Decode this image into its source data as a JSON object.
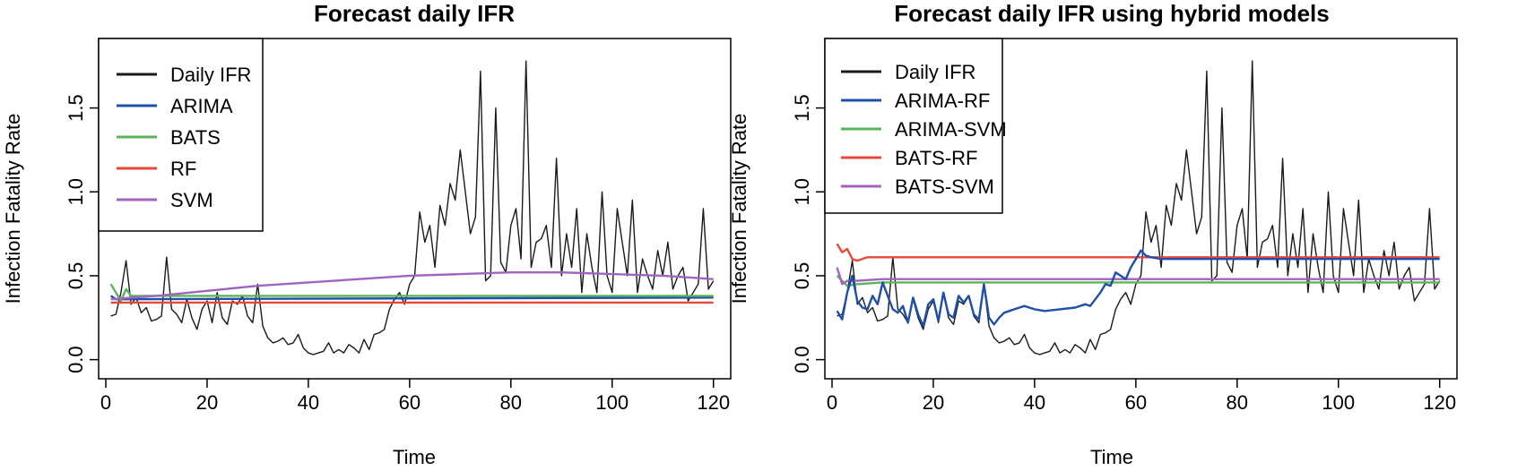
{
  "colors": {
    "ifr": "#1a1a1a",
    "blue": "#1f4fa8",
    "green": "#5ab55a",
    "red": "#e8483a",
    "purple": "#a064c0"
  },
  "daily_ifr": [
    0.26,
    0.27,
    0.4,
    0.59,
    0.33,
    0.37,
    0.28,
    0.31,
    0.23,
    0.24,
    0.26,
    0.61,
    0.3,
    0.27,
    0.22,
    0.36,
    0.25,
    0.18,
    0.3,
    0.35,
    0.22,
    0.4,
    0.25,
    0.21,
    0.35,
    0.33,
    0.38,
    0.26,
    0.22,
    0.45,
    0.2,
    0.13,
    0.1,
    0.11,
    0.13,
    0.09,
    0.1,
    0.15,
    0.07,
    0.04,
    0.03,
    0.04,
    0.05,
    0.1,
    0.04,
    0.06,
    0.04,
    0.09,
    0.07,
    0.04,
    0.12,
    0.06,
    0.15,
    0.16,
    0.18,
    0.3,
    0.36,
    0.4,
    0.33,
    0.45,
    0.5,
    0.88,
    0.7,
    0.8,
    0.55,
    0.92,
    0.8,
    1.05,
    0.95,
    1.25,
    1.0,
    0.75,
    0.85,
    1.72,
    0.47,
    0.5,
    1.5,
    0.58,
    0.52,
    0.8,
    0.9,
    0.6,
    1.78,
    0.55,
    0.7,
    0.72,
    0.8,
    0.55,
    1.2,
    0.5,
    0.75,
    0.55,
    0.9,
    0.4,
    0.75,
    0.55,
    0.4,
    1.0,
    0.5,
    0.4,
    0.9,
    0.7,
    0.5,
    0.95,
    0.4,
    0.6,
    0.5,
    0.42,
    0.65,
    0.5,
    0.7,
    0.42,
    0.5,
    0.55,
    0.35,
    0.4,
    0.45,
    0.9,
    0.42,
    0.47
  ],
  "charts": [
    {
      "title": "Forecast daily IFR",
      "xlabel": "Time",
      "ylabel": "Infection Fatality Rate",
      "xlim": [
        0,
        122
      ],
      "ylim": [
        -0.05,
        1.85
      ],
      "xticks": [
        0,
        20,
        40,
        60,
        80,
        100,
        120
      ],
      "yticks": [
        0.0,
        0.5,
        1.0,
        1.5
      ],
      "ytick_labels": [
        "0.0",
        "0.5",
        "1.0",
        "1.5"
      ],
      "legend": [
        {
          "label": "Daily IFR",
          "color": "#1a1a1a"
        },
        {
          "label": "ARIMA",
          "color": "#1f4fa8"
        },
        {
          "label": "BATS",
          "color": "#5ab55a"
        },
        {
          "label": "RF",
          "color": "#e8483a"
        },
        {
          "label": "SVM",
          "color": "#a064c0"
        }
      ],
      "series": [
        {
          "name": "ARIMA",
          "kind": "flat",
          "start": [
            [
              1,
              0.38
            ],
            [
              2,
              0.36
            ]
          ],
          "value": 0.37
        },
        {
          "name": "BATS",
          "kind": "flat",
          "start": [
            [
              1,
              0.45
            ],
            [
              2,
              0.4
            ],
            [
              3,
              0.35
            ],
            [
              4,
              0.42
            ],
            [
              5,
              0.38
            ]
          ],
          "value": 0.38
        },
        {
          "name": "RF",
          "kind": "flat",
          "start": [
            [
              1,
              0.34
            ]
          ],
          "value": 0.34
        },
        {
          "name": "SVM",
          "kind": "curve",
          "points": [
            [
              1,
              0.36
            ],
            [
              10,
              0.38
            ],
            [
              20,
              0.41
            ],
            [
              30,
              0.44
            ],
            [
              40,
              0.46
            ],
            [
              50,
              0.48
            ],
            [
              60,
              0.5
            ],
            [
              70,
              0.51
            ],
            [
              80,
              0.52
            ],
            [
              90,
              0.52
            ],
            [
              100,
              0.51
            ],
            [
              110,
              0.5
            ],
            [
              120,
              0.48
            ]
          ]
        }
      ]
    },
    {
      "title": "Forecast daily IFR using hybrid models",
      "xlabel": "Time",
      "ylabel": "Infection Fatality Rate",
      "xlim": [
        0,
        122
      ],
      "ylim": [
        -0.05,
        1.85
      ],
      "xticks": [
        0,
        20,
        40,
        60,
        80,
        100,
        120
      ],
      "yticks": [
        0.0,
        0.5,
        1.0,
        1.5
      ],
      "ytick_labels": [
        "0.0",
        "0.5",
        "1.0",
        "1.5"
      ],
      "legend": [
        {
          "label": "Daily IFR",
          "color": "#1a1a1a"
        },
        {
          "label": "ARIMA-RF",
          "color": "#1f4fa8"
        },
        {
          "label": "ARIMA-SVM",
          "color": "#5ab55a"
        },
        {
          "label": "BATS-RF",
          "color": "#e8483a"
        },
        {
          "label": "BATS-SVM",
          "color": "#a064c0"
        }
      ],
      "series": [
        {
          "name": "ARIMA-SVM",
          "kind": "flat",
          "start": [
            [
              1,
              0.5
            ],
            [
              3,
              0.44
            ],
            [
              5,
              0.45
            ],
            [
              10,
              0.46
            ]
          ],
          "value": 0.46
        },
        {
          "name": "BATS-SVM",
          "kind": "flat",
          "start": [
            [
              1,
              0.55
            ],
            [
              2,
              0.45
            ],
            [
              3,
              0.47
            ],
            [
              5,
              0.47
            ],
            [
              10,
              0.48
            ]
          ],
          "value": 0.48
        },
        {
          "name": "BATS-RF",
          "kind": "flat",
          "start": [
            [
              1,
              0.69
            ],
            [
              2,
              0.64
            ],
            [
              3,
              0.66
            ],
            [
              4,
              0.6
            ],
            [
              5,
              0.59
            ],
            [
              7,
              0.61
            ]
          ],
          "value": 0.61
        },
        {
          "name": "ARIMA-RF",
          "kind": "curve",
          "points": [
            [
              1,
              0.29
            ],
            [
              2,
              0.24
            ],
            [
              3,
              0.4
            ],
            [
              4,
              0.5
            ],
            [
              5,
              0.35
            ],
            [
              6,
              0.31
            ],
            [
              7,
              0.3
            ],
            [
              8,
              0.38
            ],
            [
              9,
              0.33
            ],
            [
              10,
              0.46
            ],
            [
              11,
              0.38
            ],
            [
              12,
              0.3
            ],
            [
              13,
              0.28
            ],
            [
              14,
              0.32
            ],
            [
              15,
              0.22
            ],
            [
              16,
              0.37
            ],
            [
              17,
              0.27
            ],
            [
              18,
              0.2
            ],
            [
              19,
              0.33
            ],
            [
              20,
              0.36
            ],
            [
              21,
              0.23
            ],
            [
              22,
              0.4
            ],
            [
              23,
              0.27
            ],
            [
              24,
              0.25
            ],
            [
              25,
              0.38
            ],
            [
              26,
              0.34
            ],
            [
              27,
              0.38
            ],
            [
              28,
              0.27
            ],
            [
              29,
              0.24
            ],
            [
              30,
              0.45
            ],
            [
              31,
              0.25
            ],
            [
              32,
              0.21
            ],
            [
              33,
              0.25
            ],
            [
              34,
              0.28
            ],
            [
              35,
              0.29
            ],
            [
              36,
              0.3
            ],
            [
              38,
              0.32
            ],
            [
              40,
              0.3
            ],
            [
              42,
              0.29
            ],
            [
              45,
              0.3
            ],
            [
              48,
              0.31
            ],
            [
              50,
              0.33
            ],
            [
              51,
              0.32
            ],
            [
              52,
              0.36
            ],
            [
              53,
              0.4
            ],
            [
              54,
              0.45
            ],
            [
              55,
              0.44
            ],
            [
              56,
              0.52
            ],
            [
              57,
              0.5
            ],
            [
              58,
              0.48
            ],
            [
              59,
              0.55
            ],
            [
              60,
              0.6
            ],
            [
              61,
              0.65
            ],
            [
              62,
              0.62
            ],
            [
              63,
              0.61
            ],
            [
              65,
              0.6
            ],
            [
              70,
              0.6
            ],
            [
              80,
              0.6
            ],
            [
              90,
              0.6
            ],
            [
              100,
              0.6
            ],
            [
              110,
              0.6
            ],
            [
              120,
              0.6
            ]
          ]
        }
      ]
    }
  ]
}
